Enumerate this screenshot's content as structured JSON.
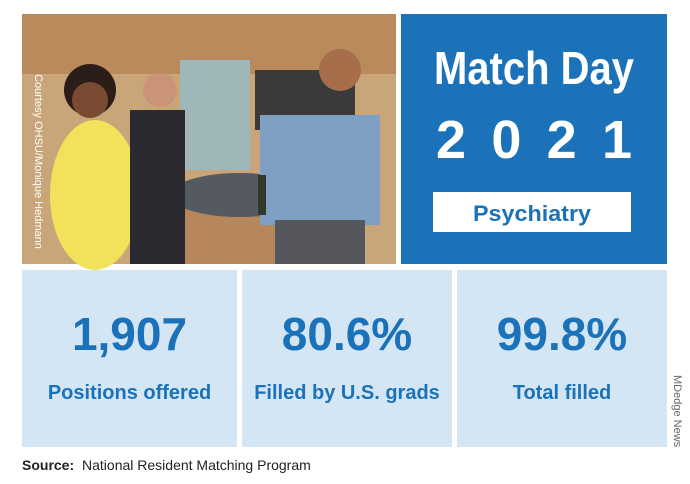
{
  "header": {
    "title": "Match Day",
    "year": "2021",
    "specialty": "Psychiatry"
  },
  "photo_credit": "Courtesy OHSU/Monique Hedmann",
  "stats": [
    {
      "value": "1,907",
      "label": "Positions offered"
    },
    {
      "value": "80.6%",
      "label": "Filled by U.S. grads"
    },
    {
      "value": "99.8%",
      "label": "Total filled"
    }
  ],
  "side_credit": "MDedge News",
  "source": {
    "label": "Source:",
    "text": "National Resident Matching Program"
  }
}
